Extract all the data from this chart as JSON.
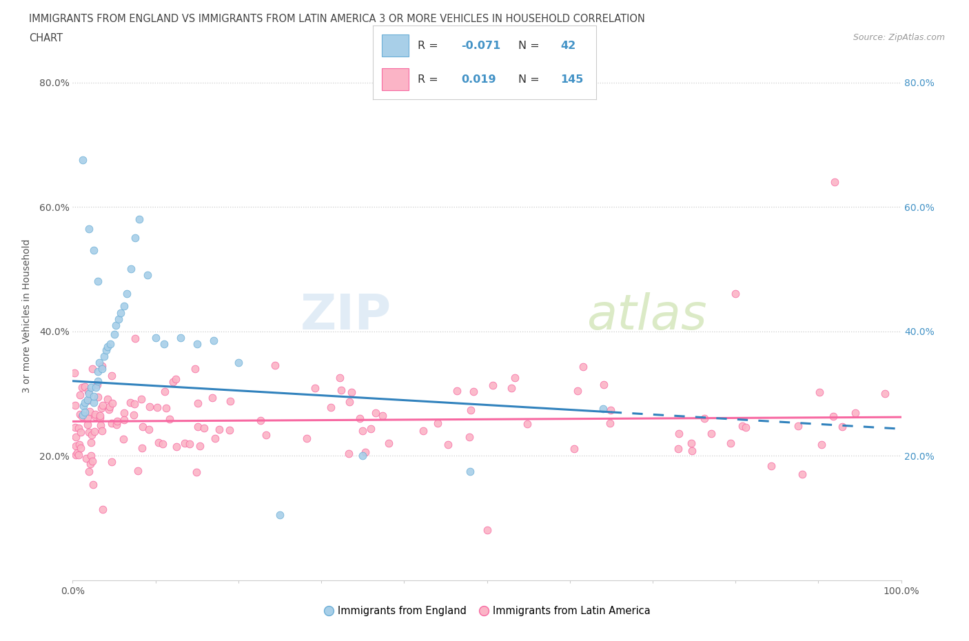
{
  "title_line1": "IMMIGRANTS FROM ENGLAND VS IMMIGRANTS FROM LATIN AMERICA 3 OR MORE VEHICLES IN HOUSEHOLD CORRELATION",
  "title_line2": "CHART",
  "source_text": "Source: ZipAtlas.com",
  "ylabel": "3 or more Vehicles in Household",
  "xlim": [
    0.0,
    1.0
  ],
  "ylim": [
    0.0,
    0.85
  ],
  "watermark_zip": "ZIP",
  "watermark_atlas": "atlas",
  "england_color": "#a8cfe8",
  "england_edge": "#6baed6",
  "latin_color": "#fbb4c6",
  "latin_edge": "#f768a1",
  "england_line_color": "#3182bd",
  "latin_line_color": "#f768a1",
  "R_england": -0.071,
  "N_england": 42,
  "R_latin": 0.019,
  "N_latin": 145,
  "legend_label_england": "Immigrants from England",
  "legend_label_latin": "Immigrants from Latin America",
  "grid_color": "#cccccc",
  "bg_color": "#ffffff",
  "right_tick_color": "#4292c6",
  "title_color": "#444444",
  "england_line_start_y": 0.32,
  "england_line_end_y": 0.27,
  "england_line_end_x": 0.65,
  "latin_line_start_y": 0.255,
  "latin_line_end_y": 0.262
}
